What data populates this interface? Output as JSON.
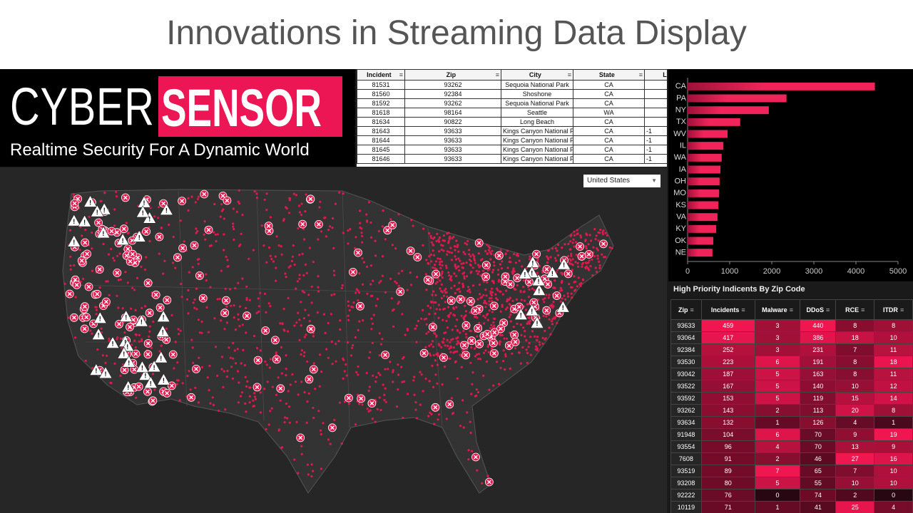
{
  "header": {
    "title": "Innovations in Streaming Data Display"
  },
  "logo": {
    "word1": "CYBER",
    "word2": "SENSOR",
    "tagline": "Realtime Security For A Dynamic World"
  },
  "incidents_table": {
    "columns": [
      "Incident",
      "Zip",
      "City",
      "State",
      "L"
    ],
    "rows": [
      [
        "81531",
        "93262",
        "Sequoia National Park",
        "CA"
      ],
      [
        "81560",
        "92384",
        "Shoshone",
        "CA"
      ],
      [
        "81592",
        "93262",
        "Sequoia National Park",
        "CA"
      ],
      [
        "81618",
        "98164",
        "Seattle",
        "WA"
      ],
      [
        "81634",
        "90822",
        "Long Beach",
        "CA"
      ],
      [
        "81643",
        "93633",
        "Kings Canyon National P-",
        "CA",
        "-1"
      ],
      [
        "81644",
        "93633",
        "Kings Canyon National P-",
        "CA",
        "-1"
      ],
      [
        "81645",
        "93633",
        "Kings Canyon National P-",
        "CA",
        "-1"
      ],
      [
        "81646",
        "93633",
        "Kings Canyon National P-",
        "CA",
        "-1"
      ]
    ]
  },
  "map": {
    "region_select": "United States"
  },
  "chart_data": {
    "type": "barh",
    "categories": [
      "CA",
      "PA",
      "NY",
      "TX",
      "WV",
      "IL",
      "WA",
      "IA",
      "OH",
      "MO",
      "KS",
      "VA",
      "KY",
      "OK",
      "NE"
    ],
    "values": [
      4450,
      2350,
      1930,
      1250,
      950,
      850,
      810,
      780,
      760,
      750,
      730,
      710,
      680,
      610,
      590
    ],
    "color": "#f0245a",
    "xlim": [
      0,
      5000
    ],
    "xticks": [
      0,
      1000,
      2000,
      3000,
      4000,
      5000
    ],
    "grid": false
  },
  "priority_table": {
    "title": "High Priority Indicents By Zip Code",
    "columns": [
      "Zip",
      "Incidents",
      "Malware",
      "DDoS",
      "RCE",
      "ITDR"
    ],
    "rows": [
      [
        "93633",
        459,
        3,
        440,
        8,
        8
      ],
      [
        "93064",
        417,
        3,
        386,
        18,
        10
      ],
      [
        "92384",
        252,
        3,
        231,
        7,
        11
      ],
      [
        "93530",
        223,
        6,
        191,
        8,
        18
      ],
      [
        "93042",
        187,
        5,
        163,
        8,
        11
      ],
      [
        "93522",
        167,
        5,
        140,
        10,
        12
      ],
      [
        "93592",
        153,
        5,
        119,
        15,
        14
      ],
      [
        "93262",
        143,
        2,
        113,
        20,
        8
      ],
      [
        "93634",
        132,
        1,
        126,
        4,
        1
      ],
      [
        "91948",
        104,
        6,
        70,
        9,
        19
      ],
      [
        "93554",
        96,
        4,
        70,
        13,
        9
      ],
      [
        "7608",
        91,
        2,
        46,
        27,
        16
      ],
      [
        "93519",
        89,
        7,
        65,
        7,
        10
      ],
      [
        "93208",
        80,
        5,
        55,
        10,
        10
      ],
      [
        "92222",
        76,
        0,
        74,
        2,
        0
      ],
      [
        "10119",
        71,
        1,
        41,
        25,
        4
      ]
    ]
  }
}
